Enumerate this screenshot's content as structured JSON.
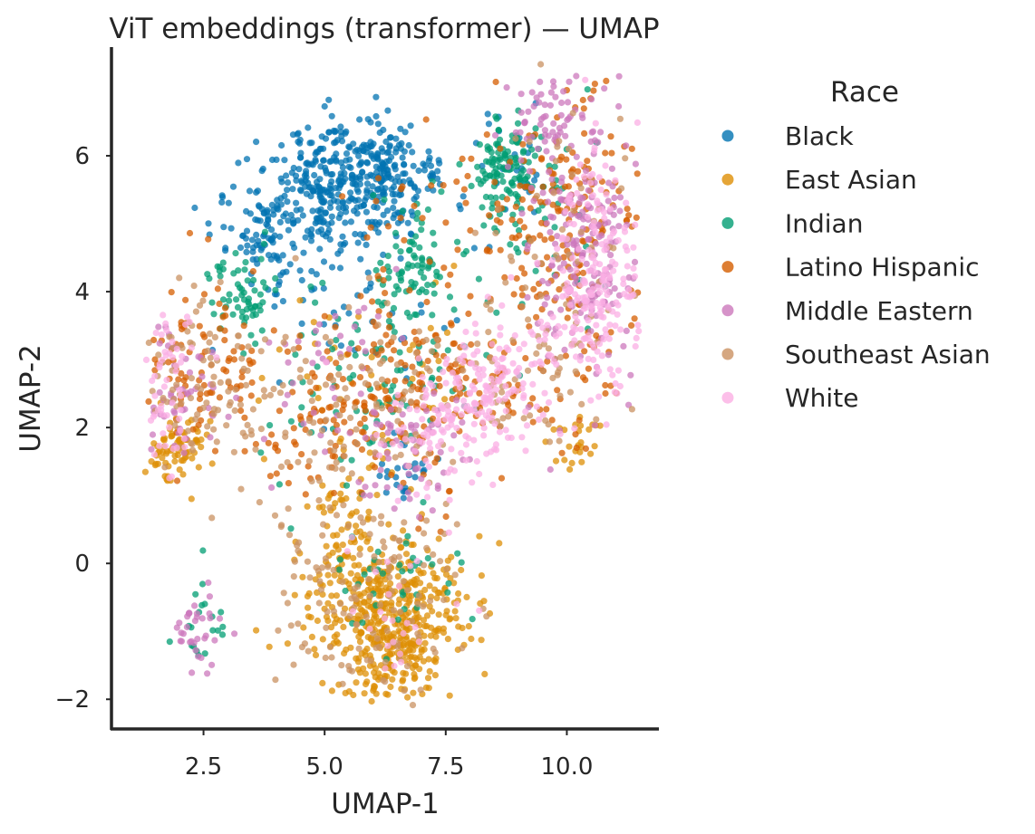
{
  "chart_data": {
    "type": "scatter",
    "title": "ViT embeddings (transformer) — UMAP",
    "xlabel": "UMAP-1",
    "ylabel": "UMAP-2",
    "xlim": [
      0.6,
      11.9
    ],
    "ylim": [
      -2.45,
      7.6
    ],
    "xticks": [
      2.5,
      5.0,
      7.5,
      10.0
    ],
    "xtick_labels": [
      "2.5",
      "5.0",
      "7.5",
      "10.0"
    ],
    "yticks": [
      -2,
      0,
      2,
      4,
      6
    ],
    "ytick_labels": [
      "−2",
      "0",
      "2",
      "4",
      "6"
    ],
    "grid": false,
    "legend": {
      "title": "Race",
      "placement": "outside-right"
    },
    "series": [
      {
        "name": "Black",
        "color": "#0173b2",
        "clusters": [
          {
            "cx": 5.2,
            "cy": 5.5,
            "sx": 1.0,
            "sy": 0.45,
            "n": 380
          },
          {
            "cx": 6.2,
            "cy": 5.9,
            "sx": 0.5,
            "sy": 0.3,
            "n": 90
          },
          {
            "cx": 4.0,
            "cy": 4.6,
            "sx": 0.5,
            "sy": 0.4,
            "n": 70
          },
          {
            "cx": 5.7,
            "cy": 3.5,
            "sx": 1.0,
            "sy": 0.8,
            "n": 40
          },
          {
            "cx": 6.5,
            "cy": 1.3,
            "sx": 0.3,
            "sy": 0.2,
            "n": 25
          },
          {
            "cx": 9.0,
            "cy": 5.8,
            "sx": 0.5,
            "sy": 0.5,
            "n": 25
          }
        ]
      },
      {
        "name": "East Asian",
        "color": "#de8f05",
        "clusters": [
          {
            "cx": 6.3,
            "cy": -0.7,
            "sx": 0.85,
            "sy": 0.55,
            "n": 400
          },
          {
            "cx": 6.2,
            "cy": -1.5,
            "sx": 0.5,
            "sy": 0.3,
            "n": 80
          },
          {
            "cx": 2.0,
            "cy": 1.7,
            "sx": 0.35,
            "sy": 0.25,
            "n": 80
          },
          {
            "cx": 5.5,
            "cy": 0.5,
            "sx": 0.4,
            "sy": 0.4,
            "n": 60
          },
          {
            "cx": 6.0,
            "cy": 2.6,
            "sx": 1.2,
            "sy": 0.8,
            "n": 60
          },
          {
            "cx": 10.2,
            "cy": 1.8,
            "sx": 0.25,
            "sy": 0.3,
            "n": 25
          }
        ]
      },
      {
        "name": "Indian",
        "color": "#029e73",
        "clusters": [
          {
            "cx": 8.8,
            "cy": 5.8,
            "sx": 0.35,
            "sy": 0.35,
            "n": 120
          },
          {
            "cx": 6.8,
            "cy": 4.4,
            "sx": 0.4,
            "sy": 0.5,
            "n": 80
          },
          {
            "cx": 3.3,
            "cy": 4.0,
            "sx": 0.35,
            "sy": 0.3,
            "n": 60
          },
          {
            "cx": 5.8,
            "cy": 2.8,
            "sx": 1.2,
            "sy": 0.7,
            "n": 90
          },
          {
            "cx": 2.5,
            "cy": -0.8,
            "sx": 0.3,
            "sy": 0.4,
            "n": 20
          },
          {
            "cx": 6.5,
            "cy": -0.3,
            "sx": 0.8,
            "sy": 0.5,
            "n": 40
          },
          {
            "cx": 9.5,
            "cy": 4.8,
            "sx": 0.8,
            "sy": 0.9,
            "n": 40
          }
        ]
      },
      {
        "name": "Latino Hispanic",
        "color": "#d55e00",
        "clusters": [
          {
            "cx": 9.8,
            "cy": 5.0,
            "sx": 0.9,
            "sy": 1.0,
            "n": 200
          },
          {
            "cx": 6.8,
            "cy": 2.6,
            "sx": 0.9,
            "sy": 0.7,
            "n": 150
          },
          {
            "cx": 2.5,
            "cy": 3.0,
            "sx": 0.6,
            "sy": 0.6,
            "n": 90
          },
          {
            "cx": 5.0,
            "cy": 2.0,
            "sx": 0.8,
            "sy": 0.6,
            "n": 70
          },
          {
            "cx": 9.5,
            "cy": 2.5,
            "sx": 0.8,
            "sy": 0.5,
            "n": 40
          },
          {
            "cx": 7.2,
            "cy": 5.0,
            "sx": 0.8,
            "sy": 0.6,
            "n": 30
          }
        ]
      },
      {
        "name": "Middle Eastern",
        "color": "#cc78bc",
        "clusters": [
          {
            "cx": 10.3,
            "cy": 4.8,
            "sx": 0.6,
            "sy": 1.0,
            "n": 220
          },
          {
            "cx": 9.5,
            "cy": 6.6,
            "sx": 0.35,
            "sy": 0.3,
            "n": 40
          },
          {
            "cx": 6.8,
            "cy": 1.6,
            "sx": 0.6,
            "sy": 0.4,
            "n": 60
          },
          {
            "cx": 2.4,
            "cy": -1.0,
            "sx": 0.25,
            "sy": 0.35,
            "n": 35
          },
          {
            "cx": 1.9,
            "cy": 2.6,
            "sx": 0.5,
            "sy": 0.5,
            "n": 50
          },
          {
            "cx": 5.3,
            "cy": 2.5,
            "sx": 0.8,
            "sy": 0.7,
            "n": 40
          }
        ]
      },
      {
        "name": "Southeast Asian",
        "color": "#ca9161",
        "clusters": [
          {
            "cx": 6.0,
            "cy": -0.5,
            "sx": 1.0,
            "sy": 0.8,
            "n": 140
          },
          {
            "cx": 2.5,
            "cy": 2.6,
            "sx": 0.6,
            "sy": 0.7,
            "n": 90
          },
          {
            "cx": 5.5,
            "cy": 2.3,
            "sx": 1.2,
            "sy": 0.8,
            "n": 110
          },
          {
            "cx": 9.8,
            "cy": 4.5,
            "sx": 0.8,
            "sy": 1.1,
            "n": 70
          },
          {
            "cx": 9.0,
            "cy": 2.8,
            "sx": 0.8,
            "sy": 0.5,
            "n": 40
          }
        ]
      },
      {
        "name": "White",
        "color": "#fbafe4",
        "clusters": [
          {
            "cx": 10.6,
            "cy": 4.3,
            "sx": 0.45,
            "sy": 0.9,
            "n": 200
          },
          {
            "cx": 8.2,
            "cy": 2.4,
            "sx": 0.6,
            "sy": 0.4,
            "n": 130
          },
          {
            "cx": 7.3,
            "cy": 1.8,
            "sx": 0.7,
            "sy": 0.5,
            "n": 60
          },
          {
            "cx": 1.8,
            "cy": 2.6,
            "sx": 0.45,
            "sy": 0.6,
            "n": 60
          },
          {
            "cx": 9.3,
            "cy": 2.8,
            "sx": 0.8,
            "sy": 0.5,
            "n": 50
          },
          {
            "cx": 6.5,
            "cy": -0.8,
            "sx": 0.6,
            "sy": 0.5,
            "n": 25
          }
        ]
      }
    ]
  }
}
